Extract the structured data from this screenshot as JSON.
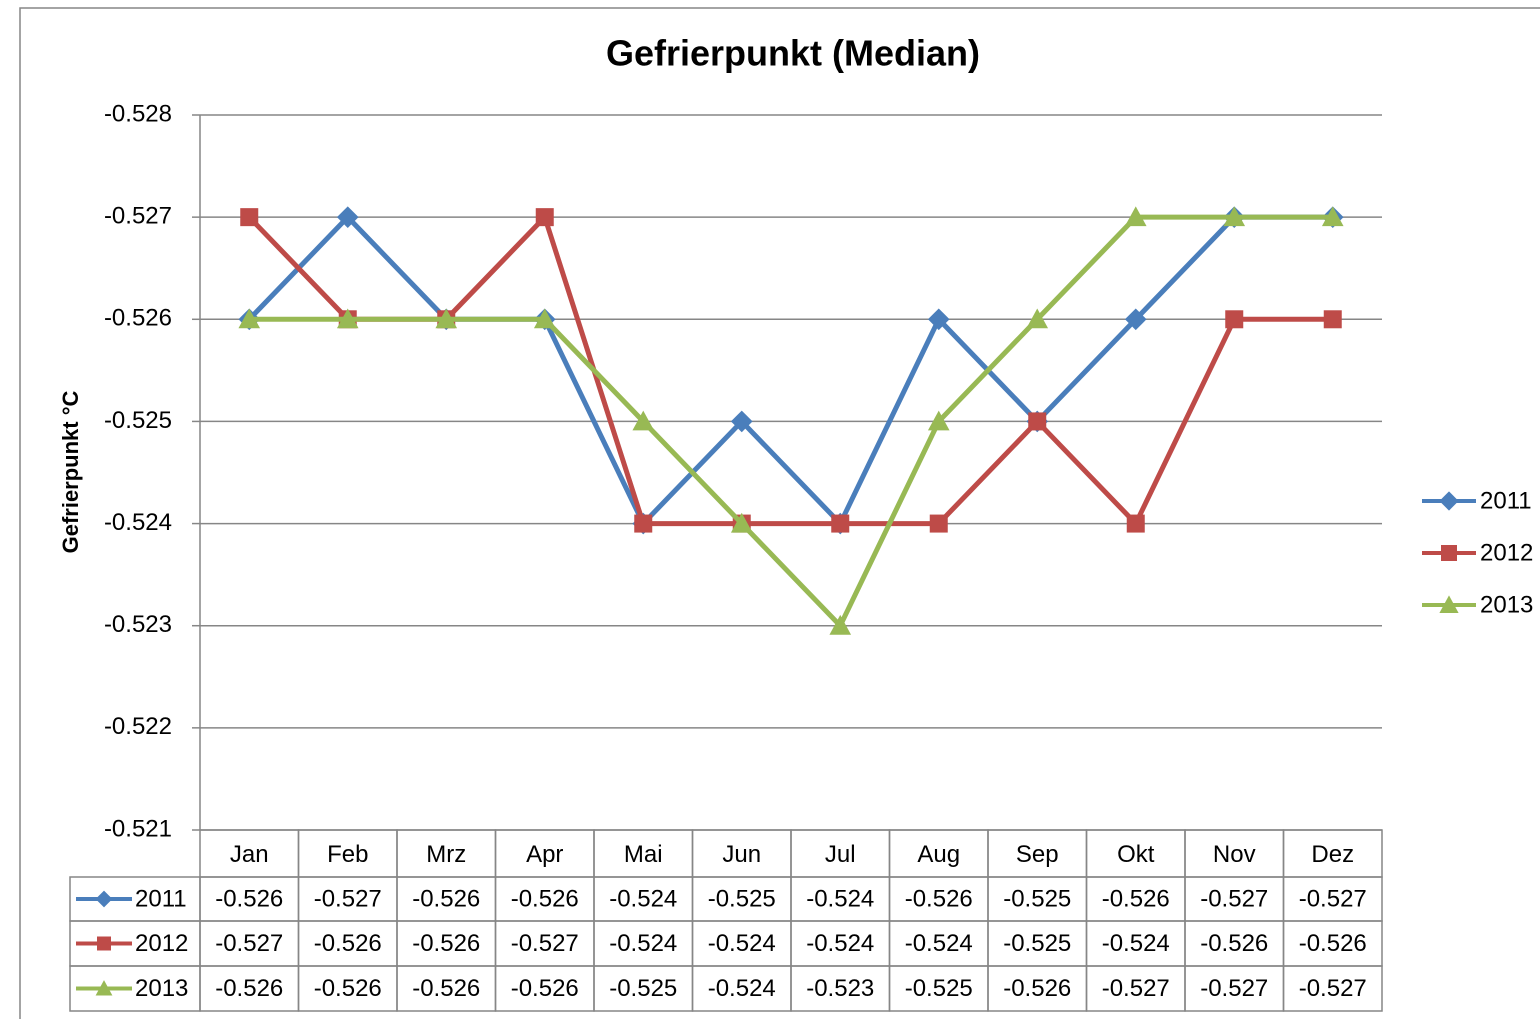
{
  "chart_data": {
    "type": "line",
    "title": "Gefrierpunkt (Median)",
    "y_label": "Gefrierpunkt °C",
    "categories": [
      "Jan",
      "Feb",
      "Mrz",
      "Apr",
      "Mai",
      "Jun",
      "Jul",
      "Aug",
      "Sep",
      "Okt",
      "Nov",
      "Dez"
    ],
    "ylim": [
      -0.521,
      -0.528
    ],
    "yticks": [
      -0.528,
      -0.527,
      -0.526,
      -0.525,
      -0.524,
      -0.523,
      -0.522,
      -0.521
    ],
    "grid": true,
    "legend": "right",
    "data_table": true,
    "series": [
      {
        "name": "2011",
        "color": "#4a7ebb",
        "marker": "diamond",
        "values": [
          -0.526,
          -0.527,
          -0.526,
          -0.526,
          -0.524,
          -0.525,
          -0.524,
          -0.526,
          -0.525,
          -0.526,
          -0.527,
          -0.527
        ]
      },
      {
        "name": "2012",
        "color": "#be4b48",
        "marker": "square",
        "values": [
          -0.527,
          -0.526,
          -0.526,
          -0.527,
          -0.524,
          -0.524,
          -0.524,
          -0.524,
          -0.525,
          -0.524,
          -0.526,
          -0.526
        ]
      },
      {
        "name": "2013",
        "color": "#98b954",
        "marker": "triangle",
        "values": [
          -0.526,
          -0.526,
          -0.526,
          -0.526,
          -0.525,
          -0.524,
          -0.523,
          -0.525,
          -0.526,
          -0.527,
          -0.527,
          -0.527
        ]
      }
    ]
  }
}
